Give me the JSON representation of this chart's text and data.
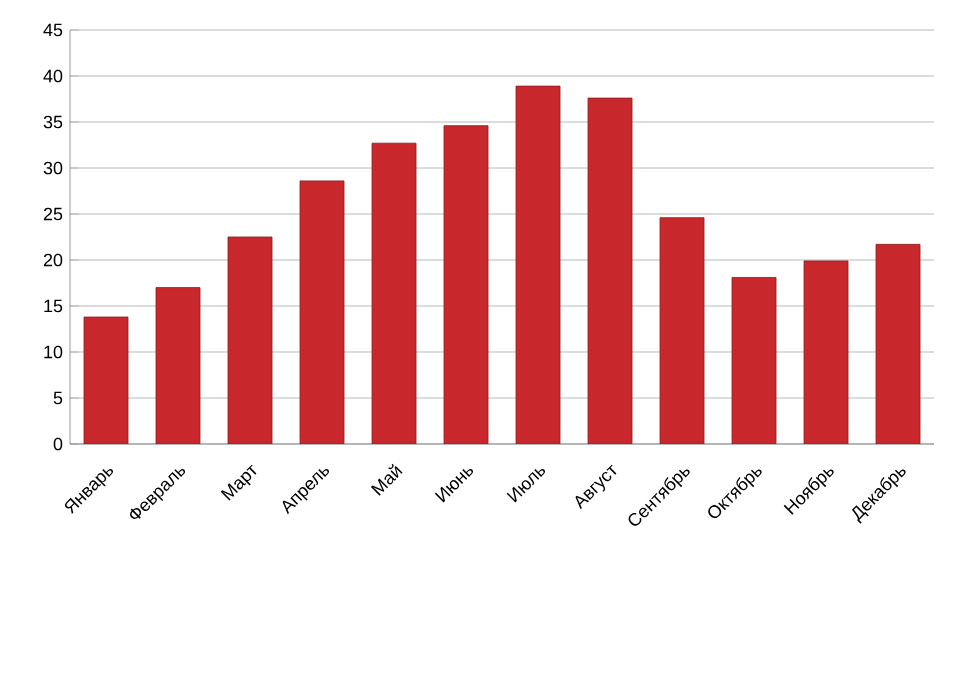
{
  "chart_data": {
    "type": "bar",
    "categories": [
      "Январь",
      "Февраль",
      "Март",
      "Апрель",
      "Май",
      "Июнь",
      "Июль",
      "Август",
      "Сентябрь",
      "Октябрь",
      "Ноябрь",
      "Декабрь"
    ],
    "values": [
      13.8,
      17.0,
      22.5,
      28.6,
      32.7,
      34.6,
      38.9,
      37.6,
      24.6,
      18.1,
      19.9,
      21.7
    ],
    "color": "#c8282c",
    "ylim": [
      0,
      45
    ],
    "yticks": [
      0,
      5,
      10,
      15,
      20,
      25,
      30,
      35,
      40,
      45
    ],
    "grid": "y"
  }
}
